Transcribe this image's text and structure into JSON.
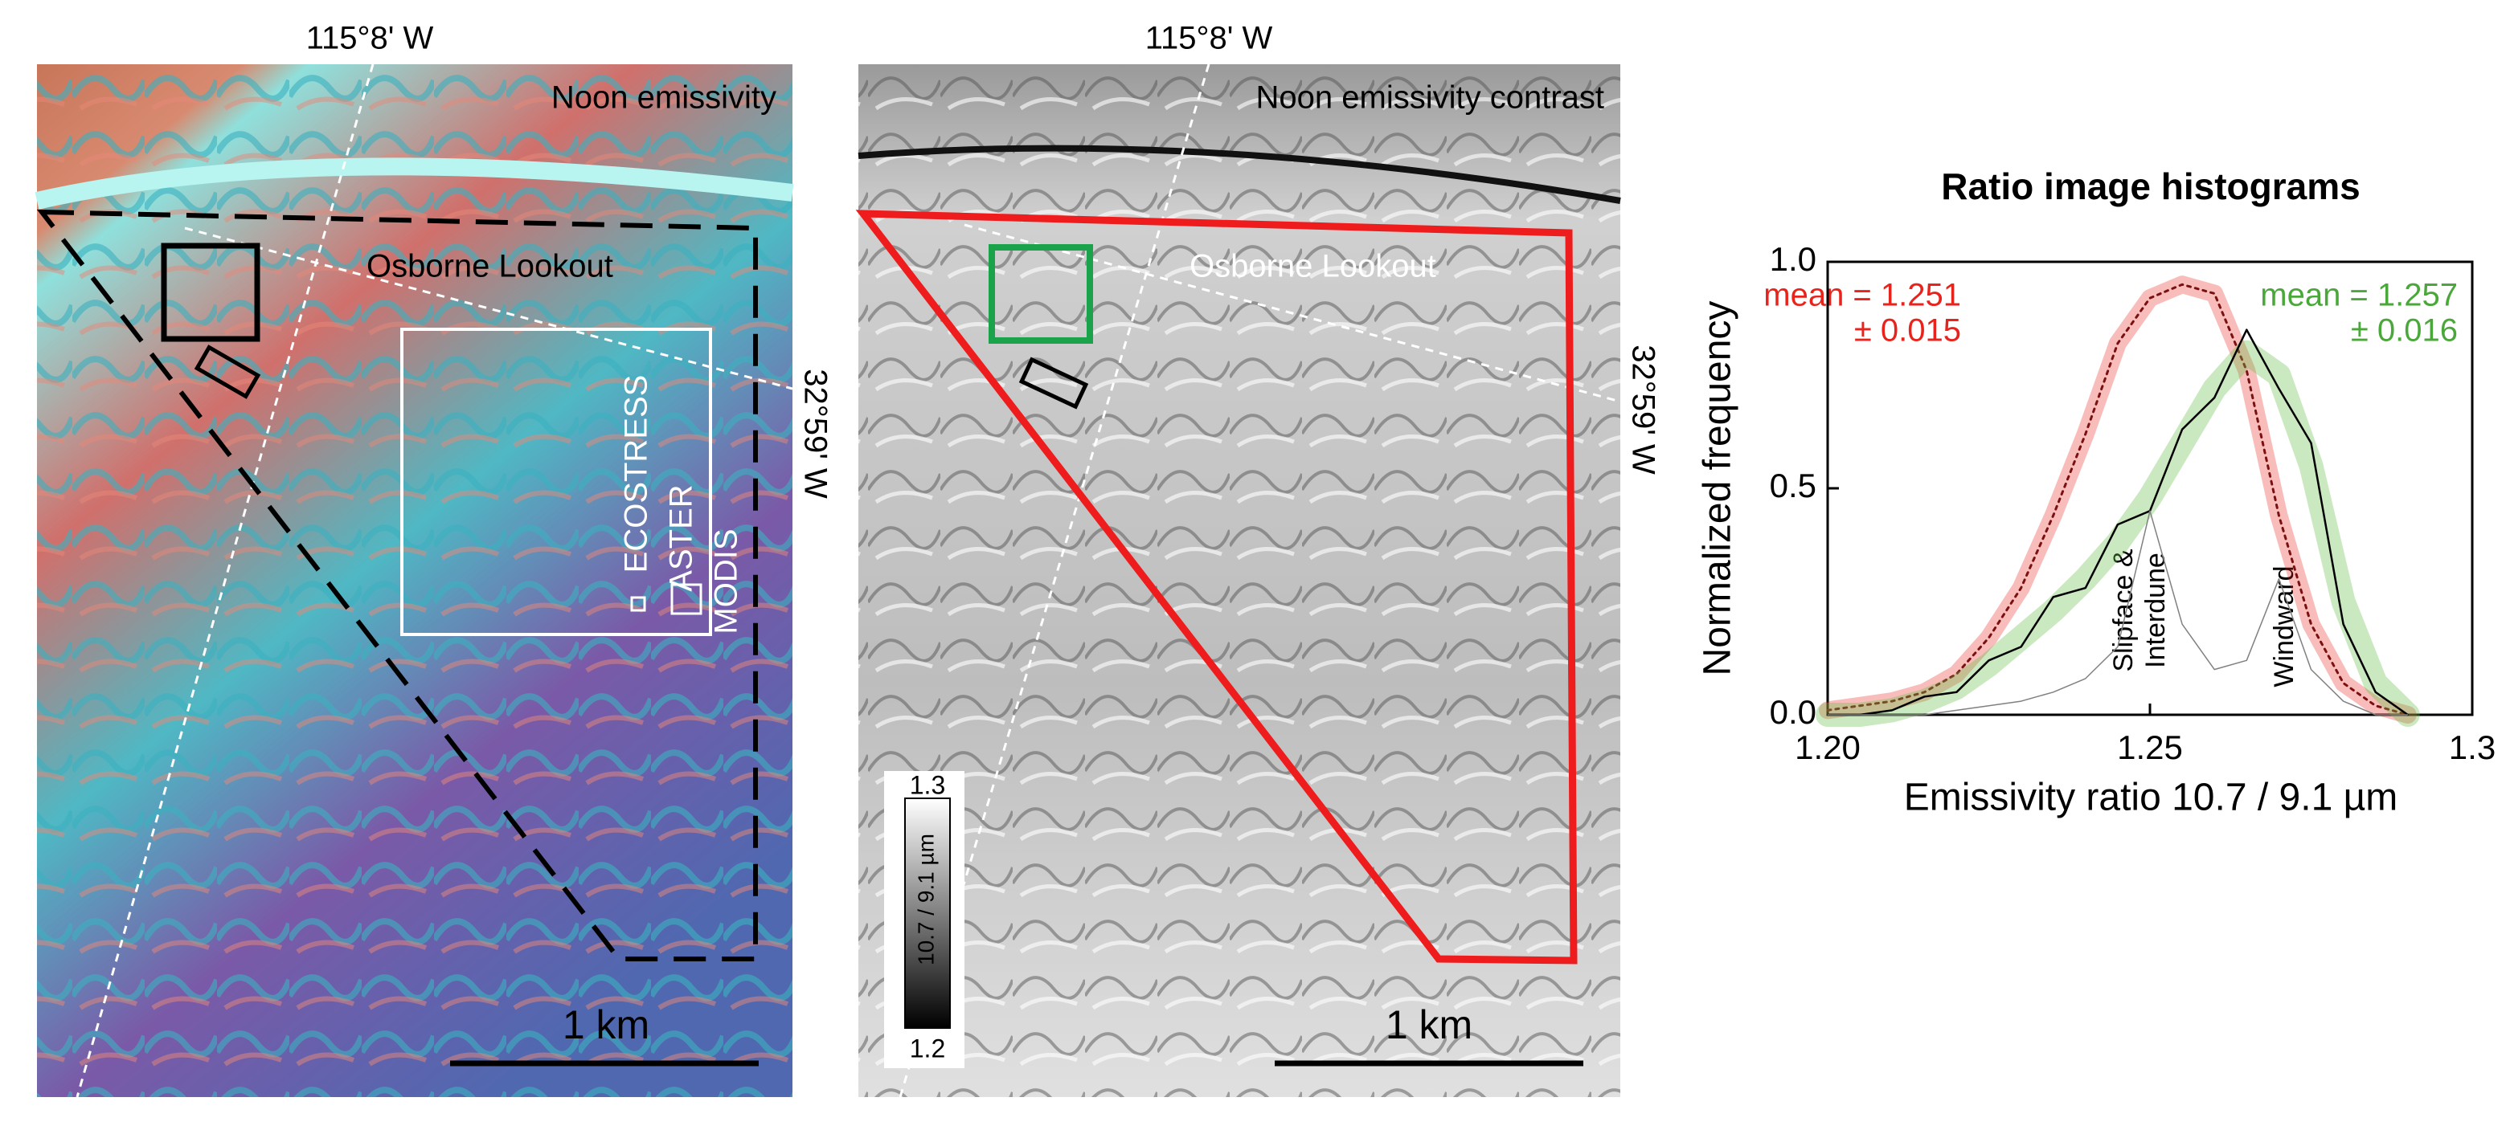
{
  "panels": [
    {
      "title": "Noon emissivity",
      "longitude": "115°8' W",
      "latitude": "32°59' W",
      "place": "Osborne Lookout",
      "footprints": [
        "ECOSTRESS",
        "ASTER",
        "MODIS"
      ],
      "scale": "1 km"
    },
    {
      "title": "Noon emissivity contrast",
      "longitude": "115°8' W",
      "latitude": "32°59' W",
      "place": "Osborne Lookout",
      "scale": "1 km",
      "colorbar": {
        "top": "1.3",
        "bottom": "1.2",
        "label": "10.7 / 9.1 µm"
      }
    }
  ],
  "chart_data": {
    "type": "line",
    "title": "Ratio image histograms",
    "x_label": "Emissivity ratio 10.7 / 9.1 µm",
    "y_label": "Normalized frequency",
    "x": [
      1.2,
      1.205,
      1.21,
      1.215,
      1.22,
      1.225,
      1.23,
      1.235,
      1.24,
      1.245,
      1.25,
      1.255,
      1.26,
      1.265,
      1.27,
      1.275,
      1.28,
      1.285,
      1.29
    ],
    "series": [
      {
        "color": "#e8231c",
        "values": [
          0.01,
          0.02,
          0.03,
          0.05,
          0.09,
          0.17,
          0.28,
          0.44,
          0.62,
          0.82,
          0.92,
          0.95,
          0.93,
          0.76,
          0.44,
          0.2,
          0.07,
          0.02,
          0
        ]
      },
      {
        "color": "#6abf4b",
        "values": [
          0,
          0,
          0.01,
          0.03,
          0.06,
          0.11,
          0.17,
          0.23,
          0.3,
          0.38,
          0.48,
          0.6,
          0.72,
          0.8,
          0.75,
          0.55,
          0.25,
          0.07,
          0
        ]
      },
      {
        "color": "#000000",
        "values": [
          0,
          0,
          0.01,
          0.04,
          0.05,
          0.12,
          0.15,
          0.26,
          0.28,
          0.42,
          0.45,
          0.63,
          0.7,
          0.85,
          0.72,
          0.6,
          0.2,
          0.05,
          0
        ]
      },
      {
        "color": "#808080",
        "values": [
          0,
          0,
          0,
          0,
          0.01,
          0.02,
          0.03,
          0.05,
          0.08,
          0.15,
          0.45,
          0.2,
          0.1,
          0.12,
          0.3,
          0.1,
          0.03,
          0,
          0
        ]
      }
    ],
    "annotations": [
      "mean = 1.251",
      "± 0.015",
      "mean = 1.257",
      "± 0.016",
      "Slipface &",
      "Interdune",
      "Windward"
    ],
    "xlim": [
      1.2,
      1.3
    ],
    "xticks": [
      {
        "value": 1.2,
        "label": "1.20"
      },
      1.25,
      {
        "value": 1.3,
        "label": "1.3"
      }
    ],
    "ylim": [
      0,
      1
    ],
    "yticks": [
      {
        "value": 0,
        "label": "0.0"
      },
      0.5,
      {
        "value": 1,
        "label": "1.0"
      }
    ]
  }
}
